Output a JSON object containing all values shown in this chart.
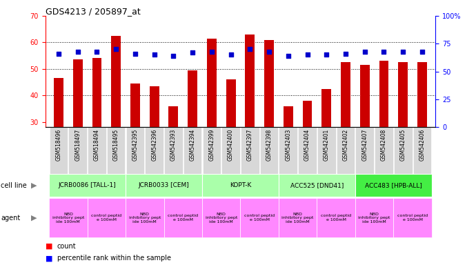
{
  "title": "GDS4213 / 205897_at",
  "samples": [
    "GSM518496",
    "GSM518497",
    "GSM518494",
    "GSM518495",
    "GSM542395",
    "GSM542396",
    "GSM542393",
    "GSM542394",
    "GSM542399",
    "GSM542400",
    "GSM542397",
    "GSM542398",
    "GSM542403",
    "GSM542404",
    "GSM542401",
    "GSM542402",
    "GSM542407",
    "GSM542408",
    "GSM542405",
    "GSM542406"
  ],
  "counts": [
    46.5,
    53.5,
    54.0,
    62.5,
    44.5,
    43.5,
    36.0,
    49.5,
    61.5,
    46.0,
    63.0,
    61.0,
    36.0,
    38.0,
    42.5,
    52.5,
    51.5,
    53.0,
    52.5,
    52.5
  ],
  "percentiles": [
    66,
    68,
    68,
    70,
    66,
    65,
    64,
    67,
    68,
    65,
    70,
    68,
    64,
    65,
    65,
    66,
    68,
    68,
    68,
    68
  ],
  "cell_lines": [
    {
      "name": "JCRB0086 [TALL-1]",
      "start": 0,
      "end": 3,
      "color": "#aaffaa"
    },
    {
      "name": "JCRB0033 [CEM]",
      "start": 4,
      "end": 7,
      "color": "#aaffaa"
    },
    {
      "name": "KOPT-K",
      "start": 8,
      "end": 11,
      "color": "#aaffaa"
    },
    {
      "name": "ACC525 [DND41]",
      "start": 12,
      "end": 15,
      "color": "#aaffaa"
    },
    {
      "name": "ACC483 [HPB-ALL]",
      "start": 16,
      "end": 19,
      "color": "#44ee44"
    }
  ],
  "agents": [
    {
      "name": "NBD\ninhibitory pept\nide 100mM",
      "start": 0,
      "end": 1,
      "color": "#ff88ff"
    },
    {
      "name": "control peptid\ne 100mM",
      "start": 2,
      "end": 3,
      "color": "#ff88ff"
    },
    {
      "name": "NBD\ninhibitory pept\nide 100mM",
      "start": 4,
      "end": 5,
      "color": "#ff88ff"
    },
    {
      "name": "control peptid\ne 100mM",
      "start": 6,
      "end": 7,
      "color": "#ff88ff"
    },
    {
      "name": "NBD\ninhibitory pept\nide 100mM",
      "start": 8,
      "end": 9,
      "color": "#ff88ff"
    },
    {
      "name": "control peptid\ne 100mM",
      "start": 10,
      "end": 11,
      "color": "#ff88ff"
    },
    {
      "name": "NBD\ninhibitory pept\nide 100mM",
      "start": 12,
      "end": 13,
      "color": "#ff88ff"
    },
    {
      "name": "control peptid\ne 100mM",
      "start": 14,
      "end": 15,
      "color": "#ff88ff"
    },
    {
      "name": "NBD\ninhibitory pept\nide 100mM",
      "start": 16,
      "end": 17,
      "color": "#ff88ff"
    },
    {
      "name": "control peptid\ne 100mM",
      "start": 18,
      "end": 19,
      "color": "#ff88ff"
    }
  ],
  "ylim_left": [
    28,
    70
  ],
  "ylim_right": [
    0,
    100
  ],
  "yticks_left": [
    30,
    40,
    50,
    60,
    70
  ],
  "yticks_right": [
    0,
    25,
    50,
    75,
    100
  ],
  "bar_color": "#cc0000",
  "dot_color": "#0000cc",
  "bg_color": "#ffffff",
  "plot_bg": "#ffffff",
  "grid_dotted_at": [
    40,
    50,
    60
  ]
}
